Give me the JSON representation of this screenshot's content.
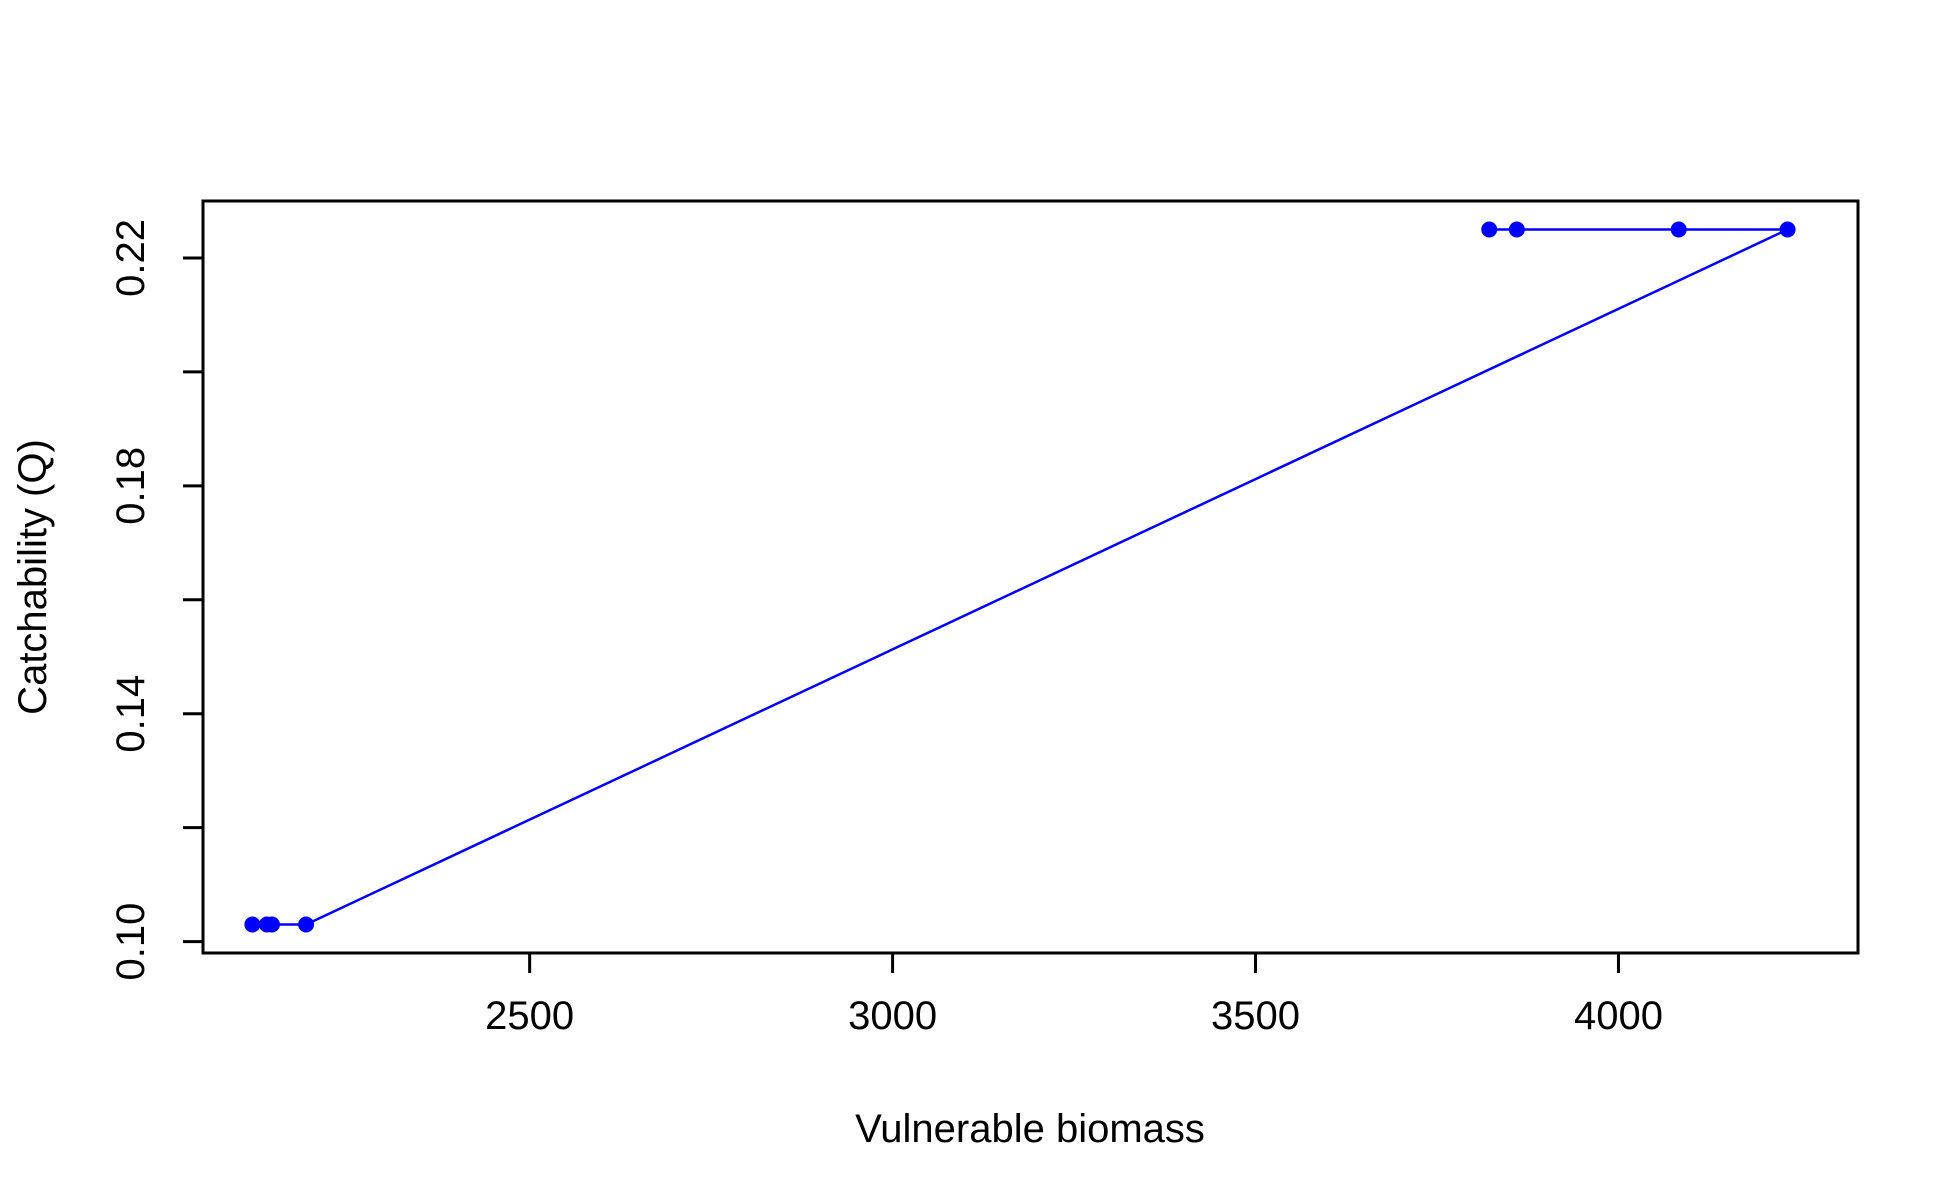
{
  "chart_data": {
    "type": "line",
    "title": "",
    "xlabel": "Vulnerable biomass",
    "ylabel": "Catchability (Q)",
    "xlim": [
      2050,
      4330
    ],
    "ylim": [
      0.098,
      0.23
    ],
    "x_ticks": [
      2500,
      3000,
      3500,
      4000
    ],
    "x_tick_labels": [
      "2500",
      "3000",
      "3500",
      "4000"
    ],
    "y_ticks": [
      0.1,
      0.12,
      0.14,
      0.16,
      0.18,
      0.2,
      0.22
    ],
    "y_tick_labels": [
      "0.10",
      "",
      "0.14",
      "",
      "0.18",
      "",
      "0.22"
    ],
    "grid": false,
    "legend": "none",
    "series": [
      {
        "color": "#0000ff",
        "markers": true,
        "x": [
          3860,
          3822,
          4083,
          4233,
          2192,
          2145,
          2138,
          2118
        ],
        "y": [
          0.225,
          0.225,
          0.225,
          0.225,
          0.103,
          0.103,
          0.103,
          0.103
        ]
      }
    ]
  }
}
